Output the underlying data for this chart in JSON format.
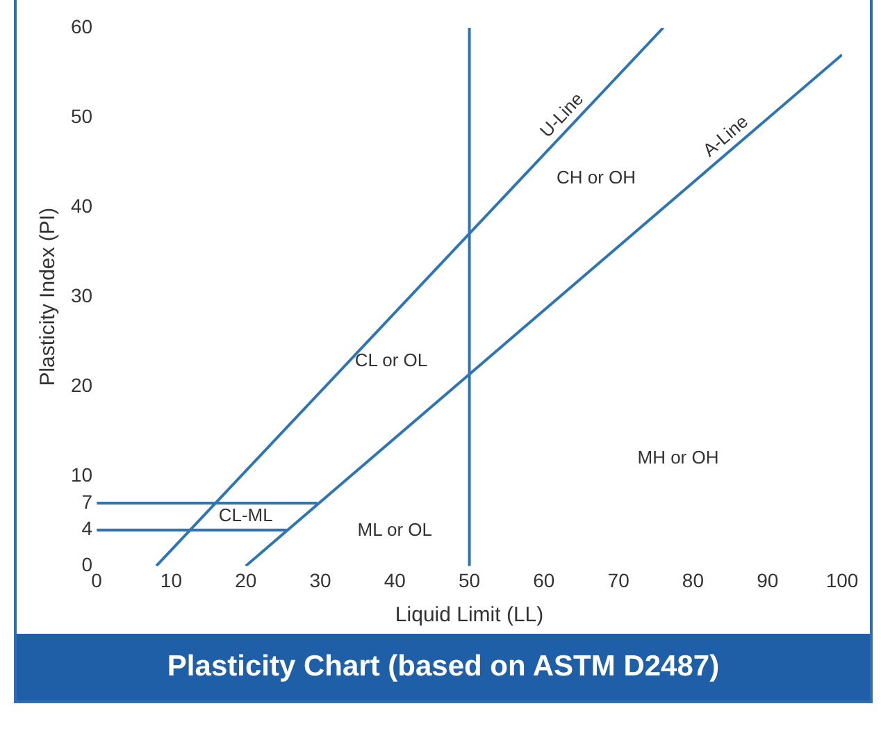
{
  "chart_data": {
    "type": "line",
    "title": "Plasticity Chart (based on ASTM D2487)",
    "xlabel": "Liquid Limit (LL)",
    "ylabel": "Plasticity Index (PI)",
    "series": [
      {
        "name": "U-Line",
        "color": "#2e75b6",
        "x": [
          8,
          76
        ],
        "values": [
          0,
          60
        ]
      },
      {
        "name": "A-Line",
        "color": "#2e75b6",
        "x": [
          20,
          100
        ],
        "values": [
          0,
          57
        ]
      },
      {
        "color": "#2e75b6",
        "x": [
          0,
          29.6
        ],
        "values": [
          7,
          7
        ]
      },
      {
        "color": "#2e75b6",
        "x": [
          0,
          25.5
        ],
        "values": [
          4,
          4
        ]
      }
    ],
    "ref_lines": [
      {
        "axis": "x",
        "value": 50,
        "color": "#2e75b6"
      }
    ],
    "annotations": [
      "CH or OH",
      "CL or OL",
      "CL-ML",
      "ML or OL",
      "MH or OH"
    ],
    "xlim": [
      0,
      100
    ],
    "xticks": [
      0,
      10,
      20,
      30,
      40,
      50,
      60,
      70,
      80,
      90,
      100
    ],
    "ylim": [
      0,
      60
    ],
    "yticks": [
      0,
      4,
      7,
      10,
      20,
      30,
      40,
      50,
      60
    ],
    "grid": false,
    "legend": false,
    "marker": "none",
    "line_style": "solid"
  }
}
